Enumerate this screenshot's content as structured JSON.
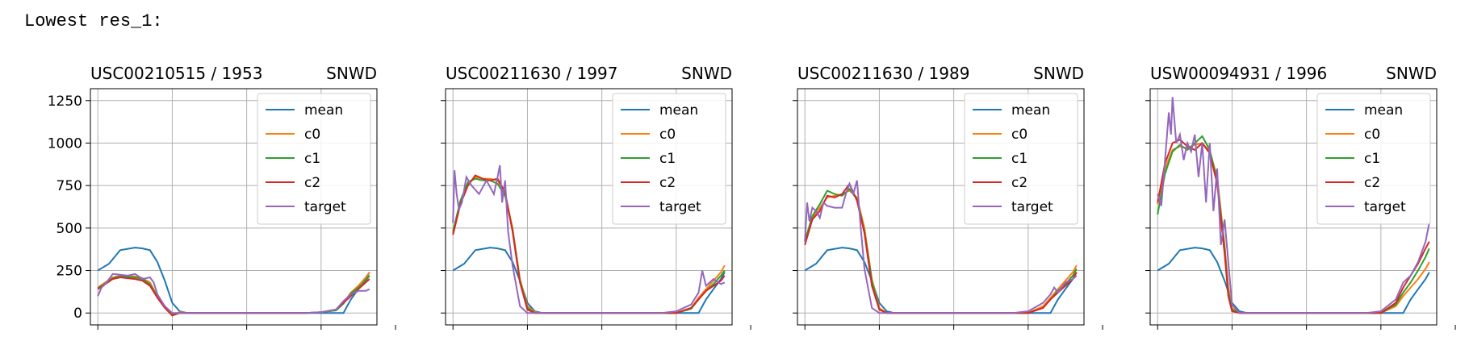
{
  "heading": "Lowest res_1:",
  "colors": {
    "mean": "#1f77b4",
    "c0": "#ff7f0e",
    "c1": "#2ca02c",
    "c2": "#d62728",
    "target": "#9467bd"
  },
  "chart_data": [
    {
      "type": "line",
      "title": "USC00210515 / 1953",
      "variable": "SNWD",
      "ylim": [
        -70,
        1320
      ],
      "xlim": [
        -10,
        375
      ],
      "yticks": [
        0,
        250,
        500,
        750,
        1000,
        1250
      ],
      "xticks": [
        0,
        100,
        200,
        300,
        400
      ],
      "grid": true,
      "legend": "top-right",
      "series": [
        {
          "name": "mean",
          "x": [
            0,
            15,
            30,
            50,
            60,
            70,
            80,
            90,
            100,
            110,
            120,
            200,
            280,
            330,
            340,
            350,
            360,
            365
          ],
          "y": [
            250,
            290,
            370,
            385,
            380,
            370,
            300,
            190,
            60,
            10,
            0,
            0,
            0,
            0,
            80,
            140,
            200,
            240
          ]
        },
        {
          "name": "c0",
          "x": [
            0,
            10,
            20,
            30,
            50,
            60,
            70,
            80,
            90,
            100,
            110,
            120,
            200,
            280,
            300,
            320,
            330,
            340,
            350,
            360,
            365
          ],
          "y": [
            150,
            180,
            210,
            220,
            215,
            205,
            180,
            100,
            40,
            -10,
            5,
            0,
            0,
            0,
            5,
            20,
            60,
            120,
            160,
            210,
            240
          ]
        },
        {
          "name": "c1",
          "x": [
            0,
            10,
            20,
            30,
            50,
            60,
            70,
            80,
            90,
            100,
            110,
            120,
            200,
            280,
            300,
            320,
            330,
            340,
            350,
            360,
            365
          ],
          "y": [
            145,
            175,
            205,
            215,
            210,
            200,
            170,
            95,
            35,
            -5,
            0,
            0,
            0,
            0,
            5,
            15,
            55,
            115,
            150,
            190,
            220
          ]
        },
        {
          "name": "c2",
          "x": [
            0,
            10,
            20,
            30,
            50,
            60,
            70,
            80,
            90,
            100,
            110,
            120,
            200,
            280,
            300,
            320,
            330,
            340,
            350,
            360,
            365
          ],
          "y": [
            140,
            170,
            200,
            210,
            200,
            190,
            160,
            90,
            30,
            -15,
            0,
            0,
            0,
            0,
            5,
            20,
            60,
            100,
            140,
            180,
            200
          ]
        },
        {
          "name": "target",
          "x": [
            0,
            5,
            10,
            15,
            20,
            30,
            40,
            50,
            60,
            70,
            75,
            80,
            90,
            100,
            110,
            120,
            200,
            280,
            300,
            320,
            330,
            340,
            350,
            360,
            365
          ],
          "y": [
            100,
            150,
            170,
            200,
            230,
            225,
            220,
            230,
            200,
            210,
            180,
            110,
            40,
            0,
            0,
            0,
            0,
            0,
            5,
            20,
            70,
            110,
            130,
            130,
            140
          ]
        }
      ]
    },
    {
      "type": "line",
      "title": "USC00211630 / 1997",
      "variable": "SNWD",
      "ylim": [
        -70,
        1320
      ],
      "xlim": [
        -10,
        375
      ],
      "yticks": [
        0,
        250,
        500,
        750,
        1000,
        1250
      ],
      "xticks": [
        0,
        100,
        200,
        300,
        400
      ],
      "grid": true,
      "legend": "top-right",
      "series": [
        {
          "name": "mean",
          "x": [
            0,
            15,
            30,
            50,
            60,
            70,
            80,
            90,
            100,
            110,
            120,
            200,
            280,
            330,
            340,
            350,
            360,
            365
          ],
          "y": [
            250,
            290,
            370,
            385,
            380,
            370,
            300,
            190,
            60,
            10,
            0,
            0,
            0,
            0,
            80,
            140,
            200,
            240
          ]
        },
        {
          "name": "c0",
          "x": [
            0,
            10,
            20,
            30,
            40,
            50,
            60,
            70,
            80,
            90,
            100,
            110,
            120,
            200,
            280,
            300,
            320,
            330,
            340,
            350,
            360,
            365
          ],
          "y": [
            470,
            650,
            760,
            800,
            790,
            790,
            780,
            700,
            500,
            200,
            40,
            5,
            0,
            0,
            0,
            0,
            30,
            90,
            140,
            190,
            240,
            280
          ]
        },
        {
          "name": "c1",
          "x": [
            0,
            10,
            20,
            30,
            40,
            50,
            60,
            70,
            80,
            90,
            100,
            110,
            120,
            200,
            280,
            300,
            320,
            330,
            340,
            350,
            360,
            365
          ],
          "y": [
            480,
            660,
            770,
            790,
            780,
            780,
            760,
            690,
            490,
            190,
            30,
            0,
            0,
            0,
            0,
            0,
            25,
            80,
            130,
            170,
            220,
            250
          ]
        },
        {
          "name": "c2",
          "x": [
            0,
            10,
            20,
            30,
            40,
            50,
            60,
            70,
            80,
            90,
            100,
            110,
            120,
            200,
            280,
            300,
            320,
            330,
            340,
            350,
            360,
            365
          ],
          "y": [
            460,
            640,
            750,
            810,
            790,
            780,
            790,
            710,
            480,
            180,
            20,
            0,
            0,
            0,
            0,
            0,
            30,
            80,
            130,
            160,
            190,
            220
          ]
        },
        {
          "name": "target",
          "x": [
            0,
            2,
            5,
            8,
            12,
            18,
            25,
            35,
            45,
            55,
            60,
            63,
            66,
            70,
            74,
            80,
            90,
            100,
            110,
            120,
            200,
            280,
            300,
            320,
            330,
            335,
            340,
            350,
            360,
            365
          ],
          "y": [
            530,
            840,
            700,
            610,
            650,
            800,
            750,
            700,
            780,
            700,
            800,
            870,
            650,
            780,
            480,
            280,
            40,
            0,
            0,
            0,
            0,
            0,
            10,
            50,
            120,
            250,
            160,
            200,
            170,
            180
          ]
        }
      ]
    },
    {
      "type": "line",
      "title": "USC00211630 / 1989",
      "variable": "SNWD",
      "ylim": [
        -70,
        1320
      ],
      "xlim": [
        -10,
        375
      ],
      "yticks": [
        0,
        250,
        500,
        750,
        1000,
        1250
      ],
      "xticks": [
        0,
        100,
        200,
        300,
        400
      ],
      "grid": true,
      "legend": "top-right",
      "series": [
        {
          "name": "mean",
          "x": [
            0,
            15,
            30,
            50,
            60,
            70,
            80,
            90,
            100,
            110,
            120,
            200,
            280,
            330,
            340,
            350,
            360,
            365
          ],
          "y": [
            250,
            290,
            370,
            385,
            380,
            370,
            300,
            190,
            60,
            10,
            0,
            0,
            0,
            0,
            80,
            140,
            200,
            240
          ]
        },
        {
          "name": "c0",
          "x": [
            0,
            10,
            20,
            30,
            40,
            50,
            60,
            70,
            80,
            90,
            100,
            110,
            120,
            200,
            280,
            300,
            320,
            330,
            340,
            350,
            360,
            365
          ],
          "y": [
            430,
            560,
            620,
            680,
            690,
            700,
            720,
            680,
            500,
            200,
            30,
            0,
            0,
            0,
            0,
            0,
            40,
            90,
            140,
            190,
            240,
            280
          ]
        },
        {
          "name": "c1",
          "x": [
            0,
            10,
            20,
            30,
            40,
            50,
            60,
            70,
            80,
            90,
            100,
            110,
            120,
            200,
            280,
            300,
            320,
            330,
            340,
            350,
            360,
            365
          ],
          "y": [
            420,
            570,
            640,
            720,
            700,
            690,
            730,
            670,
            480,
            190,
            20,
            0,
            0,
            0,
            0,
            0,
            30,
            80,
            130,
            170,
            220,
            260
          ]
        },
        {
          "name": "c2",
          "x": [
            0,
            10,
            20,
            30,
            40,
            50,
            60,
            70,
            80,
            90,
            100,
            110,
            120,
            200,
            280,
            300,
            320,
            330,
            340,
            350,
            360,
            365
          ],
          "y": [
            400,
            550,
            600,
            690,
            680,
            700,
            760,
            660,
            470,
            160,
            20,
            0,
            0,
            0,
            0,
            0,
            30,
            80,
            120,
            160,
            200,
            240
          ]
        },
        {
          "name": "target",
          "x": [
            0,
            3,
            6,
            10,
            15,
            20,
            25,
            30,
            40,
            50,
            55,
            60,
            65,
            70,
            75,
            80,
            90,
            100,
            110,
            120,
            200,
            280,
            300,
            320,
            330,
            335,
            340,
            350,
            360,
            365
          ],
          "y": [
            420,
            650,
            540,
            620,
            600,
            560,
            650,
            630,
            620,
            620,
            700,
            760,
            700,
            780,
            500,
            260,
            30,
            0,
            0,
            0,
            0,
            0,
            10,
            60,
            110,
            150,
            120,
            180,
            200,
            220
          ]
        }
      ]
    },
    {
      "type": "line",
      "title": "USW00094931 / 1996",
      "variable": "SNWD",
      "ylim": [
        -70,
        1320
      ],
      "xlim": [
        -10,
        375
      ],
      "yticks": [
        0,
        250,
        500,
        750,
        1000,
        1250
      ],
      "xticks": [
        0,
        100,
        200,
        300,
        400
      ],
      "grid": true,
      "legend": "top-right",
      "series": [
        {
          "name": "mean",
          "x": [
            0,
            15,
            30,
            50,
            60,
            70,
            80,
            90,
            100,
            110,
            120,
            200,
            280,
            330,
            340,
            350,
            360,
            365
          ],
          "y": [
            250,
            290,
            370,
            385,
            380,
            370,
            300,
            190,
            60,
            10,
            0,
            0,
            0,
            0,
            80,
            140,
            200,
            240
          ]
        },
        {
          "name": "c0",
          "x": [
            0,
            10,
            20,
            30,
            40,
            50,
            60,
            70,
            80,
            90,
            95,
            100,
            110,
            120,
            200,
            280,
            300,
            320,
            330,
            340,
            350,
            360,
            365
          ],
          "y": [
            640,
            850,
            960,
            980,
            970,
            990,
            1000,
            950,
            800,
            400,
            150,
            30,
            0,
            0,
            0,
            0,
            0,
            40,
            100,
            150,
            200,
            260,
            300
          ]
        },
        {
          "name": "c1",
          "x": [
            0,
            10,
            20,
            30,
            40,
            50,
            60,
            70,
            80,
            90,
            95,
            100,
            110,
            120,
            200,
            280,
            300,
            320,
            330,
            340,
            350,
            360,
            365
          ],
          "y": [
            580,
            820,
            950,
            990,
            960,
            1000,
            1040,
            960,
            780,
            380,
            120,
            20,
            0,
            0,
            0,
            0,
            0,
            50,
            120,
            180,
            250,
            330,
            380
          ]
        },
        {
          "name": "c2",
          "x": [
            0,
            10,
            20,
            30,
            40,
            50,
            60,
            70,
            80,
            90,
            95,
            100,
            110,
            120,
            200,
            280,
            300,
            320,
            330,
            340,
            350,
            360,
            365
          ],
          "y": [
            650,
            880,
            1000,
            1020,
            980,
            960,
            1000,
            940,
            760,
            350,
            100,
            10,
            0,
            0,
            0,
            0,
            0,
            60,
            150,
            220,
            290,
            380,
            420
          ]
        },
        {
          "name": "target",
          "x": [
            0,
            5,
            10,
            15,
            18,
            20,
            25,
            30,
            35,
            40,
            45,
            50,
            55,
            60,
            65,
            70,
            75,
            80,
            85,
            90,
            95,
            100,
            110,
            120,
            200,
            280,
            300,
            320,
            330,
            340,
            350,
            360,
            365
          ],
          "y": [
            700,
            630,
            900,
            1180,
            1050,
            1270,
            1000,
            1050,
            900,
            1000,
            950,
            1050,
            800,
            1000,
            650,
            1000,
            600,
            850,
            400,
            550,
            300,
            50,
            0,
            0,
            0,
            0,
            10,
            80,
            180,
            220,
            300,
            420,
            530
          ]
        }
      ]
    }
  ]
}
